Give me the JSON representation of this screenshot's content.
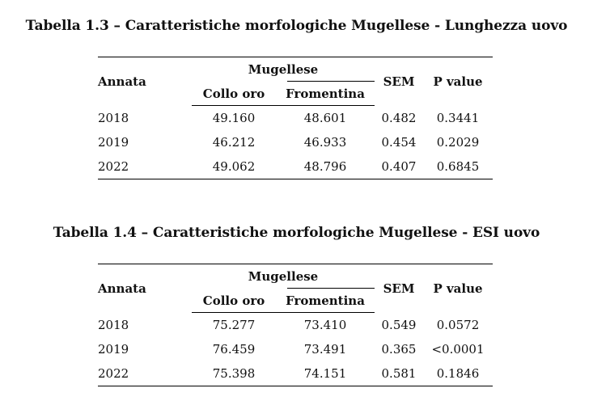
{
  "table1": {
    "caption": "Tabella 1.3 – Caratteristiche morfologiche Mugellese - Lunghezza uovo",
    "header": {
      "annata": "Annata",
      "group": "Mugellese",
      "col_collo": "Collo oro",
      "col_fromentina": "Fromentina",
      "sem": "SEM",
      "pvalue": "P value"
    },
    "rows": [
      {
        "year": "2018",
        "collo": "49.160",
        "fromentina": "48.601",
        "sem": "0.482",
        "p": "0.3441"
      },
      {
        "year": "2019",
        "collo": "46.212",
        "fromentina": "46.933",
        "sem": "0.454",
        "p": "0.2029"
      },
      {
        "year": "2022",
        "collo": "49.062",
        "fromentina": "48.796",
        "sem": "0.407",
        "p": "0.6845"
      }
    ]
  },
  "table2": {
    "caption": "Tabella 1.4 – Caratteristiche morfologiche Mugellese - ESI uovo",
    "header": {
      "annata": "Annata",
      "group": "Mugellese",
      "col_collo": "Collo oro",
      "col_fromentina": "Fromentina",
      "sem": "SEM",
      "pvalue": "P value"
    },
    "rows": [
      {
        "year": "2018",
        "collo": "75.277",
        "fromentina": "73.410",
        "sem": "0.549",
        "p": "0.0572"
      },
      {
        "year": "2019",
        "collo": "76.459",
        "fromentina": "73.491",
        "sem": "0.365",
        "p": "<0.0001"
      },
      {
        "year": "2022",
        "collo": "75.398",
        "fromentina": "74.151",
        "sem": "0.581",
        "p": "0.1846"
      }
    ]
  }
}
